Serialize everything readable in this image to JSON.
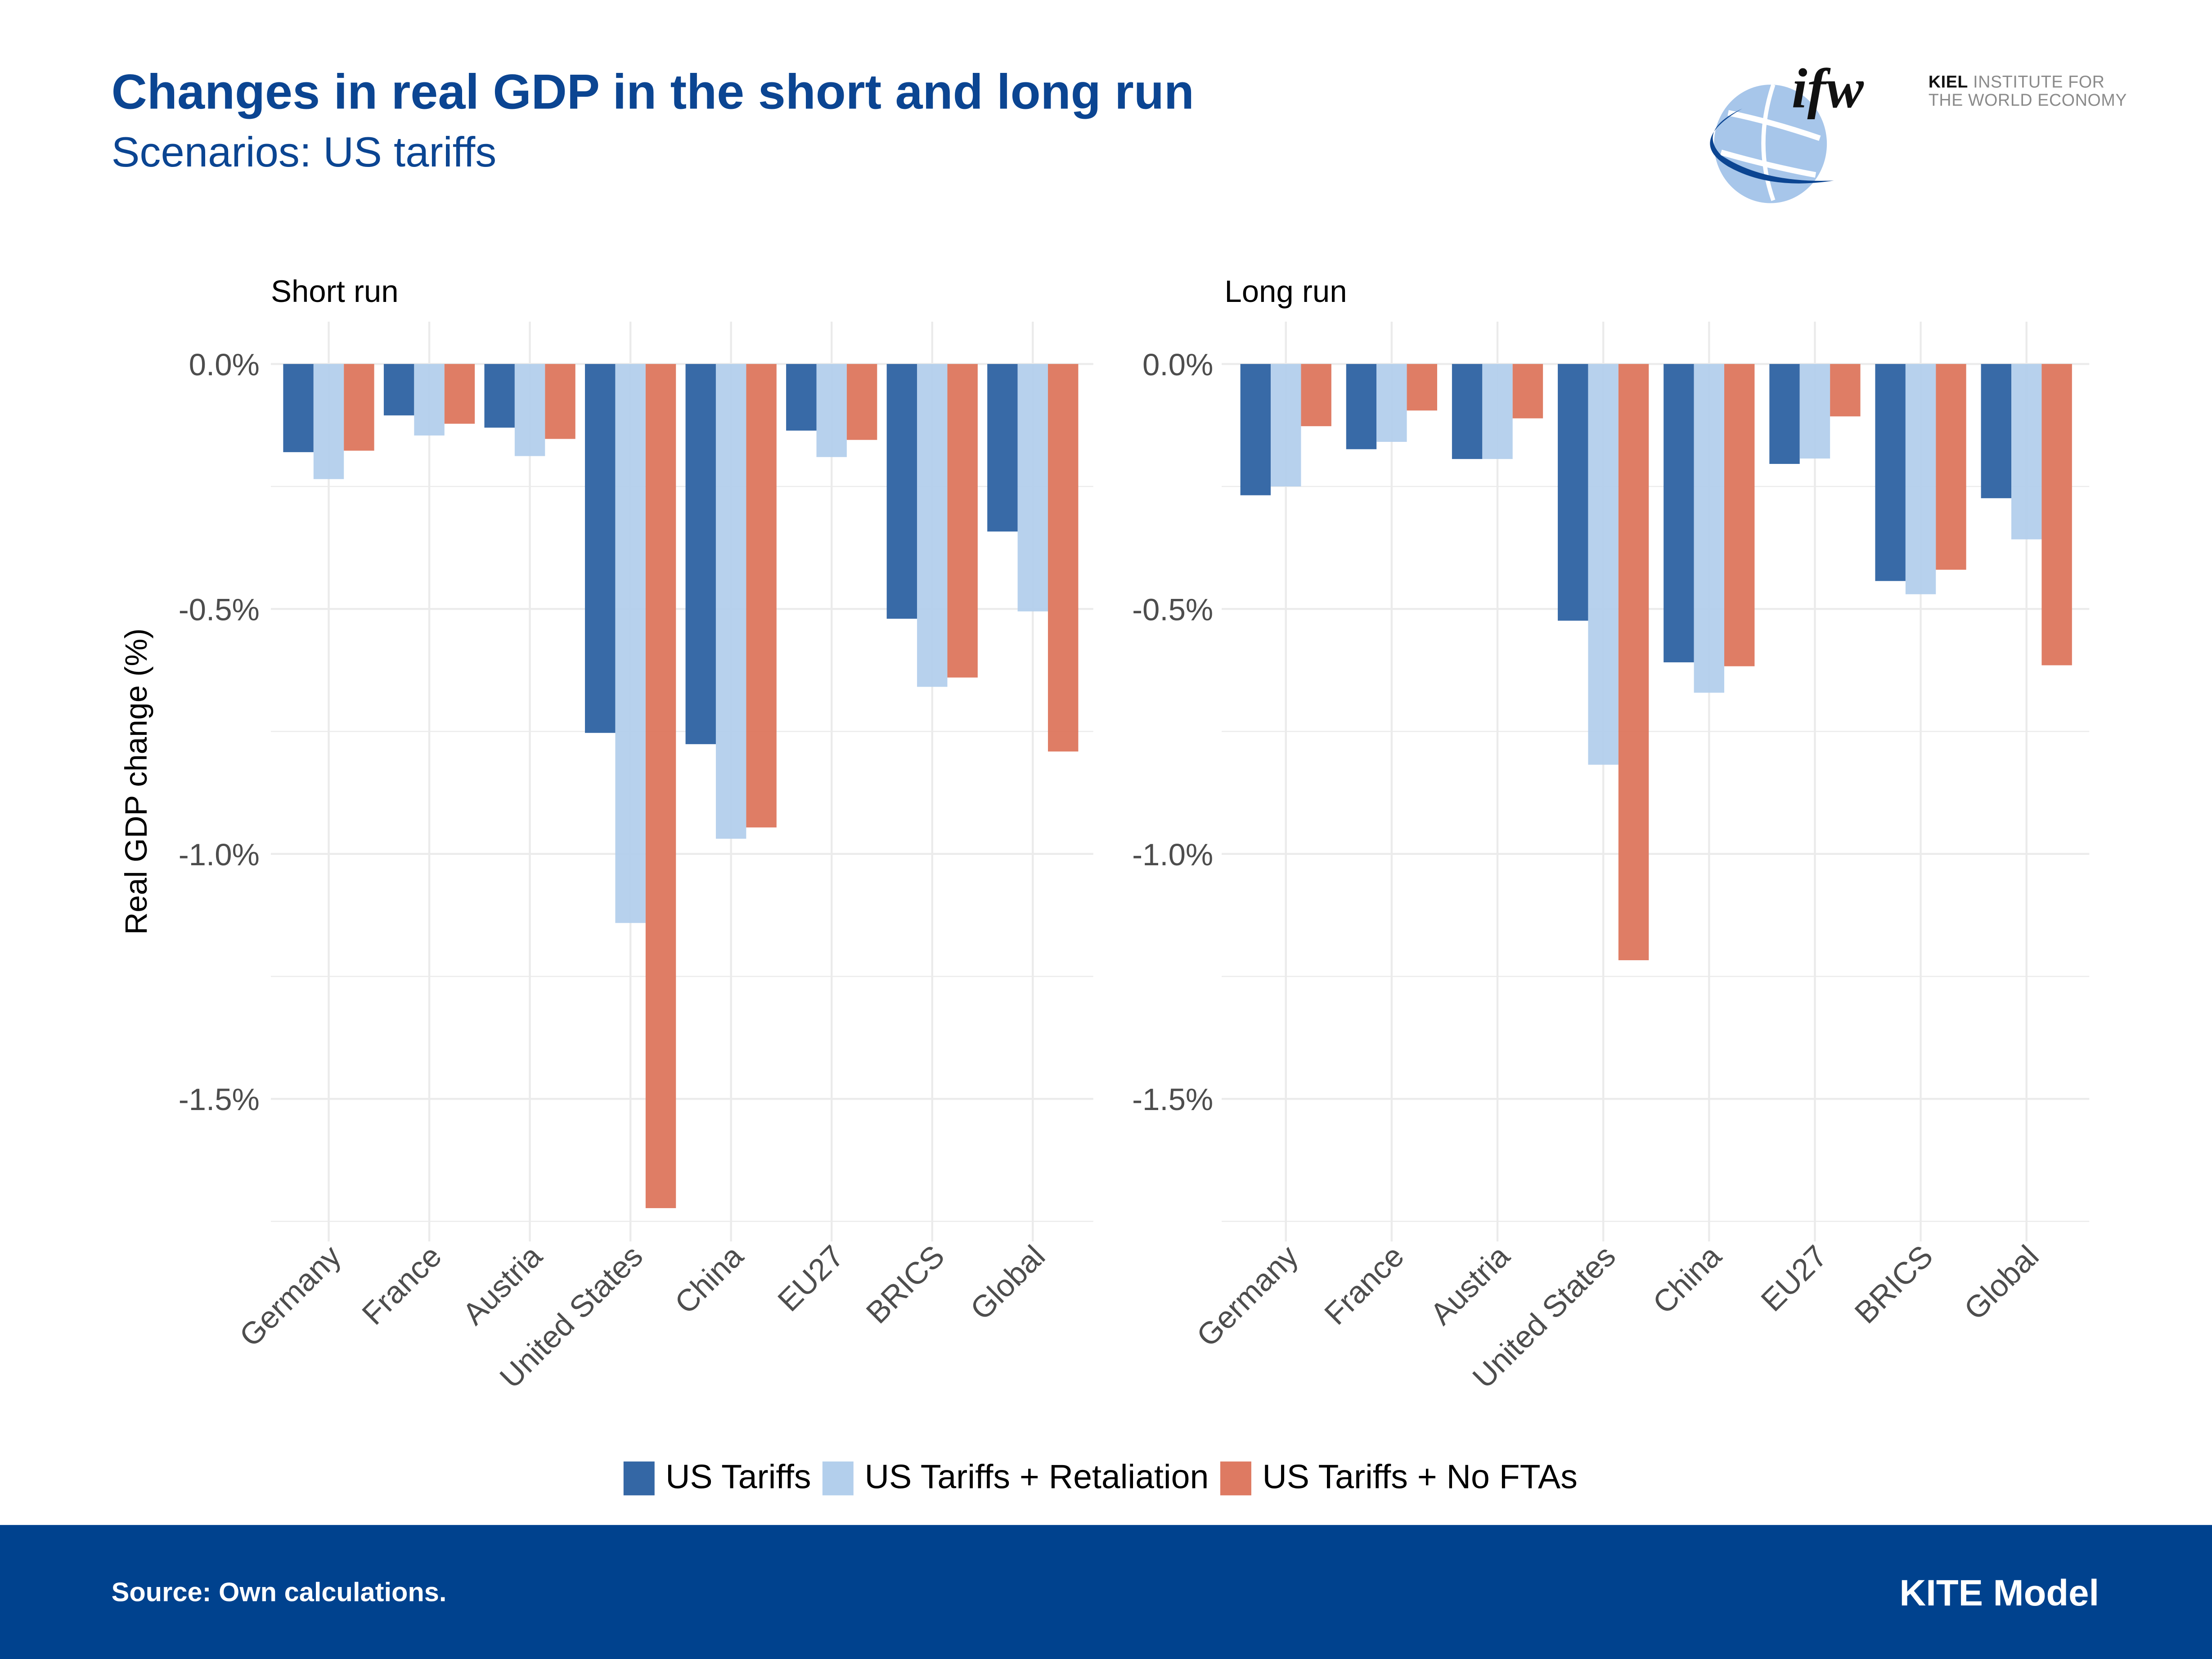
{
  "header": {
    "title": "Changes in real GDP in the short and long run",
    "subtitle": "Scenarios: US tariffs"
  },
  "logo": {
    "mark": "ifw",
    "line1_bold": "KIEL",
    "line1_rest": " INSTITUTE FOR",
    "line2": "THE WORLD ECONOMY"
  },
  "footer": {
    "source": "Source: Own calculations.",
    "model": "KITE Model"
  },
  "colors": {
    "brand_blue": "#00428e",
    "us_tariffs": "#3467a5",
    "retaliation": "#b3cfec",
    "no_ftas": "#de7a62"
  },
  "chart_data": [
    {
      "type": "bar",
      "title": "Short run",
      "xlabel": "",
      "ylabel": "Real GDP change (%)",
      "ylim": [
        -1.78,
        0.08
      ],
      "yticks": [
        0.0,
        -0.5,
        -1.0,
        -1.5
      ],
      "ytick_labels": [
        "0.0%",
        "-0.5%",
        "-1.0%",
        "-1.5%"
      ],
      "grid": true,
      "legend": "bottom",
      "categories": [
        "Germany",
        "France",
        "Austria",
        "United States",
        "China",
        "EU27",
        "BRICS",
        "Global"
      ],
      "series": [
        {
          "name": "US Tariffs",
          "values": [
            -0.18,
            -0.105,
            -0.13,
            -0.753,
            -0.776,
            -0.136,
            -0.52,
            -0.342
          ]
        },
        {
          "name": "US Tariffs + Retaliation",
          "values": [
            -0.235,
            -0.146,
            -0.188,
            -1.141,
            -0.969,
            -0.19,
            -0.659,
            -0.505
          ]
        },
        {
          "name": "US Tariffs + No FTAs",
          "values": [
            -0.177,
            -0.122,
            -0.153,
            -1.723,
            -0.946,
            -0.155,
            -0.64,
            -0.791
          ]
        }
      ]
    },
    {
      "type": "bar",
      "title": "Long run",
      "xlabel": "",
      "ylabel": "",
      "ylim": [
        -1.78,
        0.08
      ],
      "yticks": [
        0.0,
        -0.5,
        -1.0,
        -1.5
      ],
      "ytick_labels": [
        "0.0%",
        "-0.5%",
        "-1.0%",
        "-1.5%"
      ],
      "grid": true,
      "legend": "bottom",
      "categories": [
        "Germany",
        "France",
        "Austria",
        "United States",
        "China",
        "EU27",
        "BRICS",
        "Global"
      ],
      "series": [
        {
          "name": "US Tariffs",
          "values": [
            -0.268,
            -0.174,
            -0.194,
            -0.524,
            -0.609,
            -0.204,
            -0.443,
            -0.274
          ]
        },
        {
          "name": "US Tariffs + Retaliation",
          "values": [
            -0.25,
            -0.159,
            -0.194,
            -0.818,
            -0.671,
            -0.193,
            -0.47,
            -0.358
          ]
        },
        {
          "name": "US Tariffs + No FTAs",
          "values": [
            -0.127,
            -0.095,
            -0.111,
            -1.217,
            -0.617,
            -0.107,
            -0.42,
            -0.615
          ]
        }
      ]
    }
  ]
}
